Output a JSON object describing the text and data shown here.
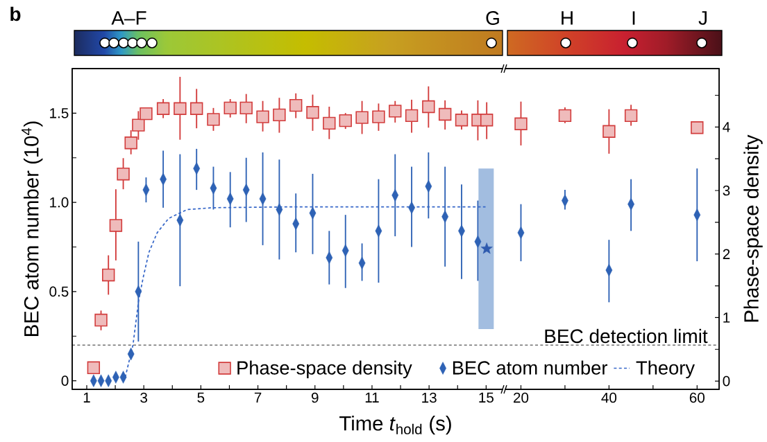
{
  "chart_data": [
    {
      "type": "scatter",
      "xlabel": "Time *t*$_{hold}$ (s)",
      "ylabel": "BEC atom number (10$^{4}$)",
      "xlim": [
        0.49,
        15.6
      ],
      "ylim": [
        -0.048,
        1.75
      ],
      "xticks": [
        1,
        {
          "value": 2,
          "label": null
        },
        3,
        {
          "value": 4,
          "label": null
        },
        5,
        {
          "value": 6,
          "label": null
        },
        7,
        {
          "value": 8,
          "label": null
        },
        9,
        {
          "value": 10,
          "label": null
        },
        11,
        {
          "value": 12,
          "label": null
        },
        13,
        {
          "value": 14,
          "label": null
        },
        15
      ],
      "yticks": [
        0,
        {
          "value": 0.25,
          "label": null
        },
        0.5,
        {
          "value": 0.75,
          "label": null
        },
        {
          "value": 1,
          "label": "1.0"
        },
        {
          "value": 1.25,
          "label": null
        },
        1.5
      ],
      "legend": "bottom right",
      "ref_lines": [
        {
          "axis": "y",
          "value": 0.2,
          "color": "#555555",
          "line_style": "dashed"
        }
      ],
      "annotations": [
        "b",
        "A–F",
        "G"
      ],
      "series": [
        {
          "name": "BEC atom number",
          "marker": "diamond",
          "color": "#2e62b5",
          "x": [
            1.24,
            1.5,
            1.76,
            2.02,
            2.28,
            2.55,
            2.81,
            3.08,
            3.68,
            4.27,
            4.85,
            5.44,
            6.03,
            6.59,
            7.17,
            7.75,
            8.33,
            8.92,
            9.5,
            10.07,
            10.65,
            11.23,
            11.81,
            12.39,
            12.98,
            13.56,
            14.14,
            14.71
          ],
          "values": [
            0,
            0,
            0,
            0.02,
            0.02,
            0.15,
            0.5,
            1.07,
            1.13,
            0.9,
            1.19,
            1.08,
            1.02,
            1.07,
            1.02,
            0.96,
            0.88,
            0.94,
            0.69,
            0.73,
            0.66,
            0.84,
            1.04,
            0.97,
            1.09,
            0.92,
            0.84,
            0.78
          ],
          "errors": [
            null,
            null,
            null,
            null,
            null,
            null,
            [
              0.22,
              0.78
            ],
            [
              1.0,
              1.14
            ],
            [
              0.97,
              1.29
            ],
            [
              0.53,
              1.27
            ],
            [
              1.07,
              1.3
            ],
            [
              0.96,
              1.2
            ],
            [
              0.86,
              1.17
            ],
            [
              0.89,
              1.25
            ],
            [
              0.76,
              1.28
            ],
            [
              0.68,
              1.24
            ],
            [
              0.72,
              1.05
            ],
            [
              0.71,
              1.16
            ],
            [
              0.54,
              0.84
            ],
            [
              0.52,
              0.93
            ],
            [
              0.56,
              0.77
            ],
            [
              0.55,
              1.13
            ],
            [
              0.81,
              1.27
            ],
            [
              0.75,
              1.2
            ],
            [
              0.91,
              1.28
            ],
            [
              0.64,
              1.2
            ],
            [
              0.57,
              1.1
            ],
            [
              0.56,
              1.01
            ]
          ]
        },
        {
          "name": "Theory",
          "type": "line",
          "line_style": "dashed",
          "color": "#3566c8",
          "x": [
            2.35,
            2.41,
            2.62,
            2.82,
            2.98,
            3.18,
            3.47,
            3.87,
            4.52,
            5.4,
            8.15,
            14.98
          ],
          "values": [
            0.02,
            0.06,
            0.2,
            0.45,
            0.58,
            0.72,
            0.83,
            0.91,
            0.96,
            0.97,
            0.975,
            0.975
          ]
        },
        {
          "type": "bar",
          "color": "#a2bde0",
          "x": [
            15.0
          ],
          "base": [
            0.29
          ],
          "values": [
            0.9
          ]
        },
        {
          "marker": "star",
          "color": "#2e5aae",
          "x": [
            15.02
          ],
          "values": [
            0.74
          ]
        }
      ]
    },
    {
      "type": "scatter",
      "xlim": [
        0.49,
        15.6
      ],
      "ylim": [
        -0.13,
        4.92
      ],
      "tick_labels": false,
      "legend": "bottom",
      "series": [
        {
          "name": "Phase-space density",
          "marker": "square",
          "color": "#d23c3c",
          "x": [
            1.24,
            1.5,
            1.76,
            2.02,
            2.28,
            2.55,
            2.81,
            3.08,
            3.68,
            4.27,
            4.85,
            5.44,
            6.03,
            6.59,
            7.17,
            7.75,
            8.33,
            8.92,
            9.5,
            10.07,
            10.65,
            11.23,
            11.81,
            12.39,
            12.98,
            13.56,
            14.14,
            14.71,
            15.02
          ],
          "values": [
            0.21,
            0.96,
            1.67,
            2.45,
            3.26,
            3.75,
            4.03,
            4.21,
            4.29,
            4.29,
            4.29,
            4.12,
            4.3,
            4.3,
            4.16,
            4.19,
            4.34,
            4.23,
            4.06,
            4.1,
            4.15,
            4.16,
            4.25,
            4.18,
            4.32,
            4.2,
            4.11,
            4.11,
            4.11
          ],
          "errors": [
            null,
            [
              0.8,
              1.11
            ],
            [
              1.36,
              1.98
            ],
            [
              1.9,
              3.02
            ],
            [
              3.02,
              3.51
            ],
            [
              3.57,
              3.95
            ],
            [
              3.8,
              4.25
            ],
            null,
            [
              4.14,
              4.44
            ],
            [
              3.8,
              4.79
            ],
            [
              3.98,
              4.6
            ],
            [
              3.94,
              4.3
            ],
            [
              4.15,
              4.44
            ],
            [
              4.06,
              4.52
            ],
            [
              3.93,
              4.41
            ],
            [
              3.91,
              4.46
            ],
            [
              4.14,
              4.53
            ],
            [
              3.94,
              4.51
            ],
            [
              3.81,
              4.32
            ],
            [
              3.97,
              4.22
            ],
            [
              3.89,
              4.41
            ],
            [
              3.94,
              4.37
            ],
            [
              4.07,
              4.41
            ],
            [
              3.91,
              4.43
            ],
            [
              3.99,
              4.64
            ],
            [
              3.96,
              4.42
            ],
            [
              3.96,
              4.26
            ],
            [
              3.79,
              4.42
            ],
            [
              3.81,
              4.39
            ]
          ]
        }
      ]
    },
    {
      "type": "scatter",
      "ylabel": "Phase-space density",
      "xlim": [
        16.3,
        65.0
      ],
      "ylim": [
        -0.13,
        4.92
      ],
      "xticks": [
        20,
        {
          "value": 30,
          "label": null
        },
        40,
        {
          "value": 50,
          "label": null
        },
        60
      ],
      "yticks": [
        0,
        {
          "value": 0.5,
          "label": null
        },
        1,
        {
          "value": 1.5,
          "label": null
        },
        2,
        {
          "value": 2.5,
          "label": null
        },
        3,
        {
          "value": 3.5,
          "label": null
        },
        4,
        {
          "value": 4.5,
          "label": null
        }
      ],
      "annotations": [
        "H",
        "I",
        "J"
      ],
      "series": [
        {
          "marker": "square",
          "color": "#d23c3c",
          "x": [
            20,
            30,
            40,
            45,
            60
          ],
          "values": [
            4.05,
            4.18,
            3.93,
            4.18,
            3.99
          ],
          "errors": [
            [
              3.71,
              4.4
            ],
            [
              4.06,
              4.31
            ],
            [
              3.58,
              4.28
            ],
            [
              4.02,
              4.35
            ],
            null
          ]
        }
      ]
    },
    {
      "type": "scatter",
      "xlim": [
        16.3,
        65.0
      ],
      "ylim": [
        -0.048,
        1.75
      ],
      "tick_labels": false,
      "ref_lines": [
        {
          "axis": "y",
          "value": 0.2,
          "label": "BEC detection limit",
          "color": "#555555",
          "line_style": "dashed"
        }
      ],
      "series": [
        {
          "marker": "diamond",
          "color": "#2e62b5",
          "x": [
            20,
            30,
            40,
            45,
            60
          ],
          "values": [
            0.83,
            1.01,
            0.62,
            0.99,
            0.93
          ],
          "errors": [
            [
              0.67,
              0.99
            ],
            [
              0.96,
              1.07
            ],
            [
              0.44,
              0.79
            ],
            [
              0.84,
              1.13
            ],
            [
              0.67,
              1.19
            ]
          ]
        }
      ]
    }
  ]
}
